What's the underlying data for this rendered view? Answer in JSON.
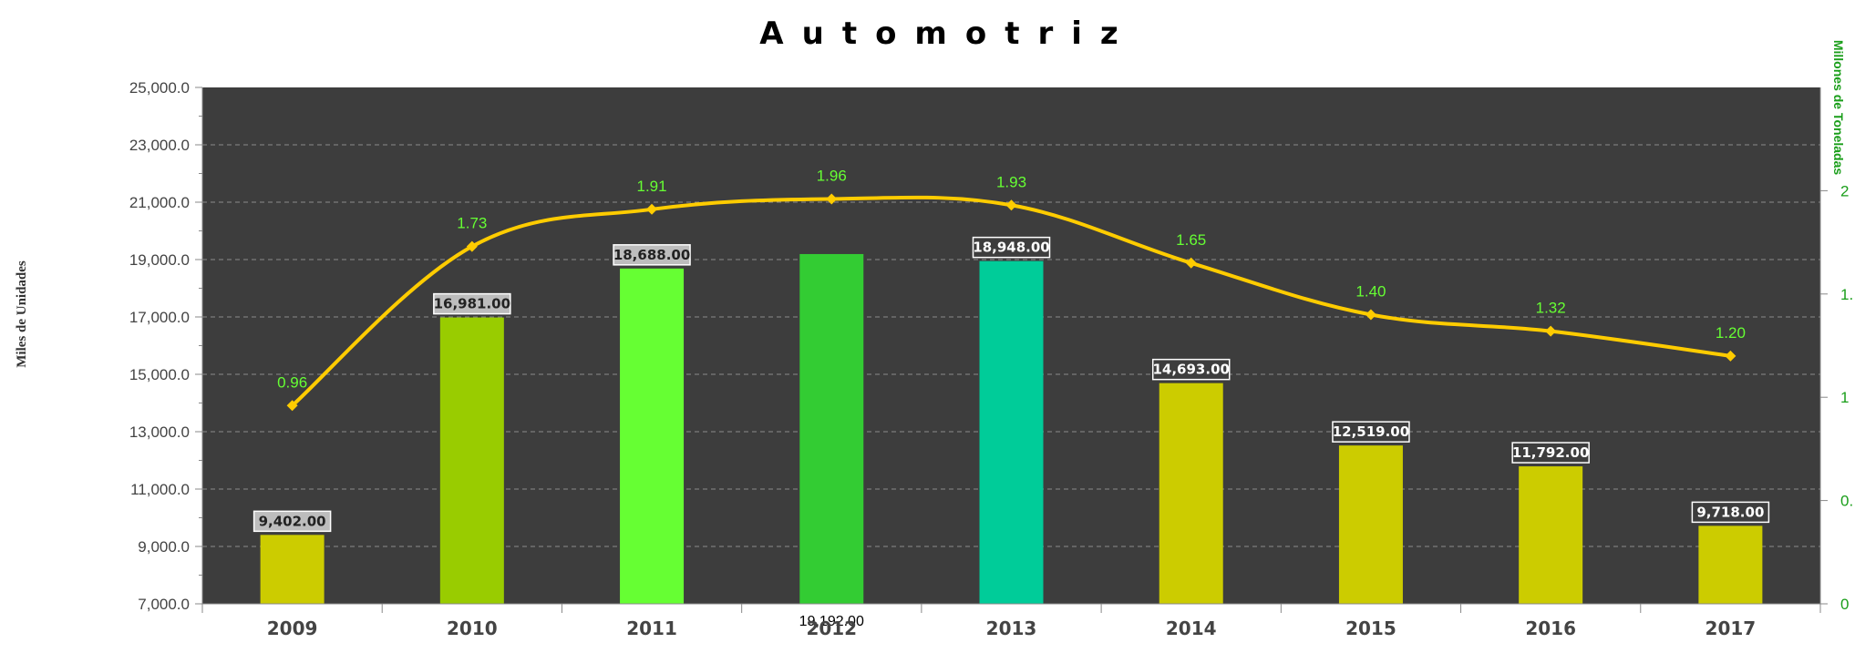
{
  "chart_data": {
    "type": "bar",
    "title": "Automotriz",
    "ylabel": "Miles de Unidades",
    "ylabel_right": "Millones de Toneladas",
    "categories": [
      "2009",
      "2010",
      "2011",
      "2012",
      "2013",
      "2014",
      "2015",
      "2016",
      "2017"
    ],
    "series": [
      {
        "name": "",
        "kind": "bar",
        "axis": "left",
        "values": [
          9402.0,
          16981.0,
          18688.0,
          19192.0,
          18948.0,
          14693.0,
          12519.0,
          11792.0,
          9718.0
        ],
        "labels": [
          "9,402.00",
          "16,981.00",
          "18,688.00",
          "19,192.00",
          "18,948.00",
          "14,693.00",
          "12,519.00",
          "11,792.00",
          "9,718.00"
        ],
        "colors": [
          "#cccc00",
          "#99cc00",
          "#66ff33",
          "#33cc33",
          "#00cc99",
          "#cccc00",
          "#cccc00",
          "#cccc00",
          "#cccc00"
        ]
      },
      {
        "name": "",
        "kind": "line",
        "axis": "right",
        "values": [
          0.96,
          1.73,
          1.91,
          1.96,
          1.93,
          1.65,
          1.4,
          1.32,
          1.2
        ],
        "labels": [
          "0.96",
          "1.73",
          "1.91",
          "1.96",
          "1.93",
          "1.65",
          "1.40",
          "1.32",
          "1.20"
        ],
        "color": "#ffcc00"
      }
    ],
    "ylim": [
      7000,
      25000
    ],
    "yticks": [
      "25,000.0",
      "23,000.0",
      "21,000.0",
      "19,000.0",
      "17,000.0",
      "15,000.0",
      "13,000.0",
      "11,000.0",
      "9,000.0",
      "7,000.0"
    ],
    "ylim_right": [
      0,
      2.5
    ],
    "yticks_right": [
      "2",
      "1.",
      "1",
      "0.",
      "0"
    ],
    "grid": true,
    "plot_background": "#3d3d3d",
    "grid_color": "#8a8a8a"
  }
}
